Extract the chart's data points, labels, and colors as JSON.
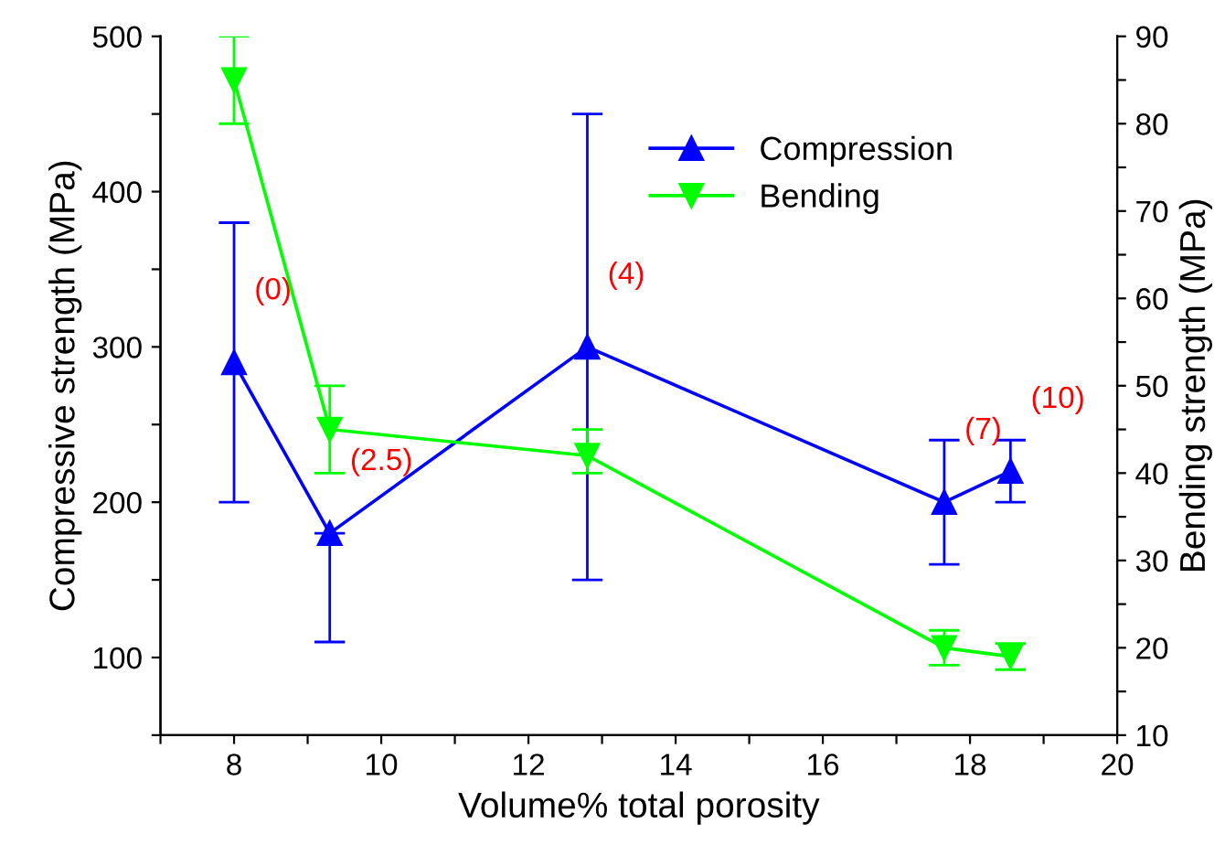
{
  "chart_data": {
    "type": "line",
    "xlabel": "Volume% total porosity",
    "ylabel": "Compressive strength (MPa)",
    "y2label": "Bending strength (MPa)",
    "x": [
      8,
      9.3,
      12.8,
      17.65,
      18.55
    ],
    "series": [
      {
        "name": "Compression",
        "color": "#0000ff",
        "marker": "triangle",
        "values": [
          290,
          180,
          300,
          200,
          220
        ],
        "errors": [
          [
            200,
            380
          ],
          [
            110,
            180
          ],
          [
            150,
            450
          ],
          [
            160,
            240
          ],
          [
            200,
            240
          ]
        ]
      },
      {
        "name": "Bending",
        "color": "#00ff00",
        "marker": "triangle_down",
        "axis": "y2",
        "values": [
          85,
          45,
          42,
          20,
          19
        ],
        "errors": [
          [
            80,
            90
          ],
          [
            40,
            50
          ],
          [
            40,
            45
          ],
          [
            18,
            22
          ],
          [
            17.5,
            20.5
          ]
        ]
      }
    ],
    "xlim": [
      7,
      20
    ],
    "xticks": [
      {
        "value": 7,
        "label": null
      },
      8,
      {
        "value": 9,
        "label": null
      },
      10,
      {
        "value": 11,
        "label": null
      },
      12,
      {
        "value": 13,
        "label": null
      },
      14,
      {
        "value": 15,
        "label": null
      },
      16,
      {
        "value": 17,
        "label": null
      },
      18,
      {
        "value": 19,
        "label": null
      },
      20
    ],
    "ylim": [
      50,
      500
    ],
    "yticks": [
      {
        "value": 50,
        "label": null
      },
      100,
      {
        "value": 150,
        "label": null
      },
      200,
      {
        "value": 250,
        "label": null
      },
      300,
      {
        "value": 350,
        "label": null
      },
      400,
      {
        "value": 450,
        "label": null
      },
      500
    ],
    "y2lim": [
      10,
      90
    ],
    "y2ticks": [
      10,
      {
        "value": 15,
        "label": null
      },
      20,
      {
        "value": 25,
        "label": null
      },
      30,
      {
        "value": 35,
        "label": null
      },
      40,
      {
        "value": 45,
        "label": null
      },
      50,
      {
        "value": 55,
        "label": null
      },
      60,
      {
        "value": 65,
        "label": null
      },
      70,
      {
        "value": 75,
        "label": null
      },
      80,
      {
        "value": 85,
        "label": null
      },
      90
    ],
    "annotations": [
      {
        "text": "(0)",
        "x": 8,
        "y": 290
      },
      {
        "text": "(2.5)",
        "x": 9.3,
        "y": 180
      },
      {
        "text": "(4)",
        "x": 12.8,
        "y": 300
      },
      {
        "text": "(7)",
        "x": 17.65,
        "y": 200
      },
      {
        "text": "(10)",
        "x": 18.55,
        "y": 220
      }
    ],
    "legend": "top right",
    "grid": false
  }
}
